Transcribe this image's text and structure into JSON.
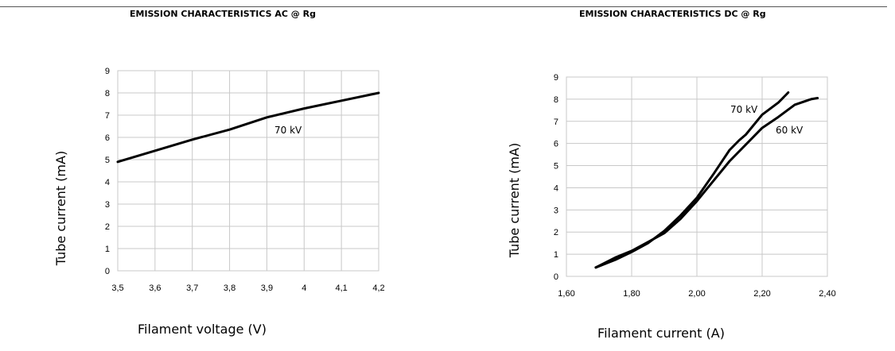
{
  "chart_data": [
    {
      "type": "line",
      "title": "EMISSION CHARACTERISTICS AC @ Rg",
      "xlabel": "Filament voltage (V)",
      "ylabel": "Tube current (mA)",
      "xlim": [
        3.5,
        4.2
      ],
      "ylim": [
        0,
        9
      ],
      "x_ticks": [
        "3,5",
        "3,6",
        "3,7",
        "3,8",
        "3,9",
        "4",
        "4,1",
        "4,2"
      ],
      "y_ticks": [
        "0",
        "1",
        "2",
        "3",
        "4",
        "5",
        "6",
        "7",
        "8",
        "9"
      ],
      "grid": true,
      "series": [
        {
          "name": "70 kV",
          "x": [
            3.5,
            3.6,
            3.7,
            3.8,
            3.9,
            4.0,
            4.1,
            4.2
          ],
          "values": [
            4.9,
            5.4,
            5.9,
            6.35,
            6.9,
            7.3,
            7.65,
            8.0
          ]
        }
      ]
    },
    {
      "type": "line",
      "title": "EMISSION CHARACTERISTICS DC @ Rg",
      "xlabel": "Filament current (A)",
      "ylabel": "Tube current (mA)",
      "xlim": [
        1.6,
        2.4
      ],
      "ylim": [
        0,
        9
      ],
      "x_ticks": [
        "1,60",
        "1,80",
        "2,00",
        "2,20",
        "2,40"
      ],
      "y_ticks": [
        "0",
        "1",
        "2",
        "3",
        "4",
        "5",
        "6",
        "7",
        "8",
        "9"
      ],
      "grid": true,
      "series": [
        {
          "name": "70 kV",
          "x": [
            1.69,
            1.75,
            1.8,
            1.85,
            1.9,
            1.95,
            2.0,
            2.05,
            2.1,
            2.13,
            2.15,
            2.2,
            2.25,
            2.28
          ],
          "values": [
            0.4,
            0.75,
            1.1,
            1.5,
            2.05,
            2.75,
            3.55,
            4.6,
            5.7,
            6.15,
            6.4,
            7.3,
            7.85,
            8.3
          ]
        },
        {
          "name": "60 kV",
          "x": [
            1.69,
            1.75,
            1.8,
            1.85,
            1.9,
            1.95,
            2.0,
            2.05,
            2.1,
            2.15,
            2.2,
            2.25,
            2.3,
            2.35,
            2.37
          ],
          "values": [
            0.4,
            0.85,
            1.15,
            1.55,
            1.95,
            2.6,
            3.4,
            4.3,
            5.2,
            5.95,
            6.7,
            7.2,
            7.75,
            8.0,
            8.05
          ]
        }
      ]
    }
  ]
}
